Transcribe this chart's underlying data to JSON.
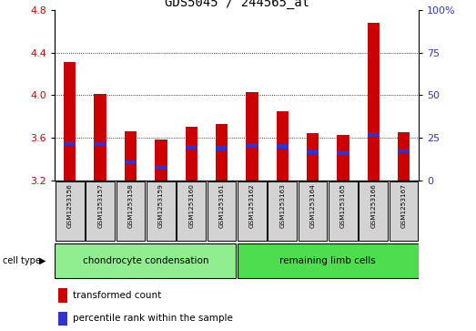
{
  "title": "GDS5045 / 244565_at",
  "samples": [
    "GSM1253156",
    "GSM1253157",
    "GSM1253158",
    "GSM1253159",
    "GSM1253160",
    "GSM1253161",
    "GSM1253162",
    "GSM1253163",
    "GSM1253164",
    "GSM1253165",
    "GSM1253166",
    "GSM1253167"
  ],
  "transformed_counts": [
    4.31,
    4.01,
    3.66,
    3.58,
    3.7,
    3.73,
    4.03,
    3.85,
    3.64,
    3.63,
    4.68,
    3.65
  ],
  "percentile_ranks": [
    3.55,
    3.54,
    3.37,
    3.32,
    3.51,
    3.5,
    3.53,
    3.52,
    3.47,
    3.46,
    3.63,
    3.48
  ],
  "ylim_left": [
    3.2,
    4.8
  ],
  "ylim_right": [
    0,
    100
  ],
  "yticks_left": [
    3.2,
    3.6,
    4.0,
    4.4,
    4.8
  ],
  "yticks_right": [
    0,
    25,
    50,
    75,
    100
  ],
  "right_tick_labels": [
    "0",
    "25",
    "50",
    "75",
    "100%"
  ],
  "bar_color": "#cc0000",
  "percentile_color": "#3333cc",
  "group1_label": "chondrocyte condensation",
  "group2_label": "remaining limb cells",
  "group1_indices": [
    0,
    1,
    2,
    3,
    4,
    5
  ],
  "group2_indices": [
    6,
    7,
    8,
    9,
    10,
    11
  ],
  "group1_bg": "#90ee90",
  "group2_bg": "#4ddd4d",
  "cell_type_label": "cell type",
  "legend_count_label": "transformed count",
  "legend_pct_label": "percentile rank within the sample",
  "title_fontsize": 10,
  "tick_fontsize": 8,
  "bar_width": 0.4,
  "sample_bg": "#d3d3d3",
  "plot_bg": "white",
  "blue_bar_height": 0.04
}
